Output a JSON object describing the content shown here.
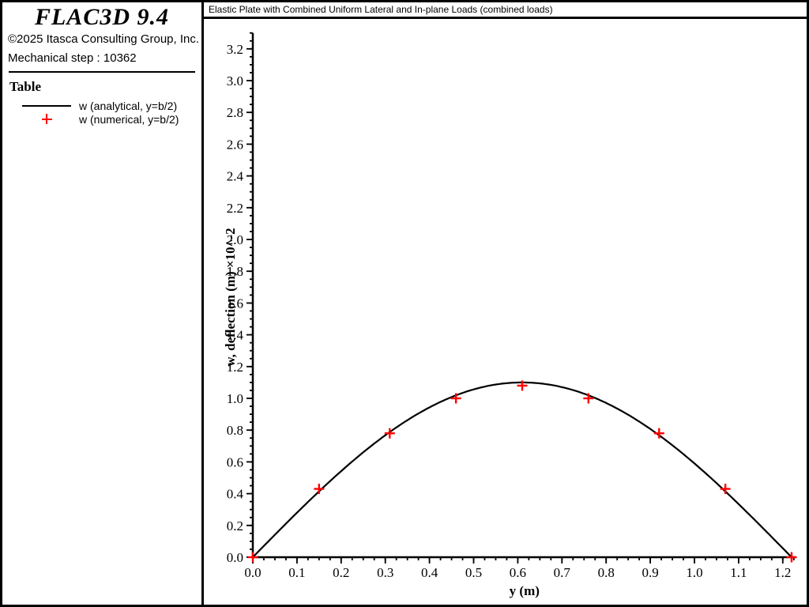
{
  "colors": {
    "accent_red": "#ff0000",
    "stroke_black": "#000000"
  },
  "sidebar": {
    "logo": "FLAC3D 9.4",
    "copyright": "©2025 Itasca Consulting Group, Inc.",
    "step_label": "Mechanical step : 10362",
    "legend_title": "Table",
    "legend": [
      {
        "marker": "line",
        "color": "#000000",
        "label": "w (analytical, y=b/2)"
      },
      {
        "marker": "plus",
        "color": "#ff0000",
        "label": "w (numerical, y=b/2)"
      }
    ]
  },
  "chart": {
    "title": "Elastic Plate with Combined Uniform Lateral and In-plane Loads (combined loads)"
  },
  "chart_data": {
    "type": "line",
    "title": "Elastic Plate with Combined Uniform Lateral and In-plane Loads (combined loads)",
    "xlabel": "y (m)",
    "ylabel": "w, deflection (m) ×10^-2",
    "xlim": [
      0,
      1.23
    ],
    "ylim": [
      0,
      3.3
    ],
    "grid": false,
    "legend_position": "sidebar",
    "x_major_ticks": [
      0.0,
      0.1,
      0.2,
      0.3,
      0.4,
      0.5,
      0.6,
      0.7,
      0.8,
      0.9,
      1.0,
      1.1,
      1.2
    ],
    "x_minor_step": 0.025,
    "y_major_ticks": [
      0.0,
      0.2,
      0.4,
      0.6,
      0.8,
      1.0,
      1.2,
      1.4,
      1.6,
      1.8,
      2.0,
      2.2,
      2.4,
      2.6,
      2.8,
      3.0,
      3.2
    ],
    "y_minor_step": 0.05,
    "series": [
      {
        "name": "w (analytical, y=b/2)",
        "type": "curve",
        "shape": "half-sine",
        "color": "#000000",
        "amplitude": 1.1,
        "span": 1.22
      },
      {
        "name": "w (numerical, y=b/2)",
        "type": "points",
        "marker": "plus",
        "color": "#ff0000",
        "x": [
          0.0,
          0.15,
          0.31,
          0.46,
          0.61,
          0.76,
          0.92,
          1.07,
          1.22
        ],
        "y": [
          0.0,
          0.43,
          0.78,
          1.0,
          1.08,
          1.0,
          0.78,
          0.43,
          0.0
        ]
      }
    ]
  }
}
